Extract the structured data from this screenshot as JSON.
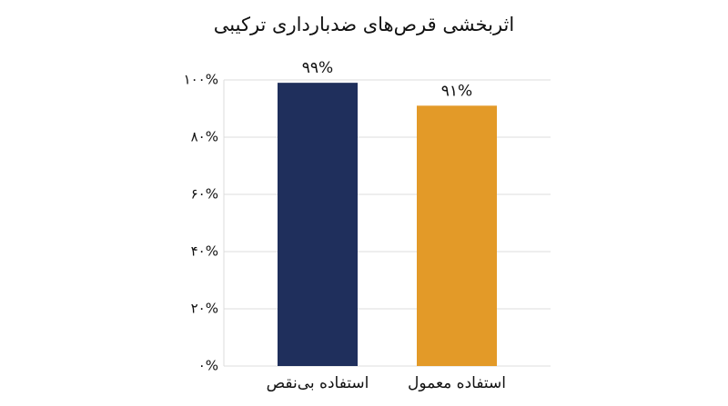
{
  "chart_data": {
    "type": "bar",
    "title": "اثربخشی قرص‌های ضدبارداری ترکیبی",
    "categories": [
      "استفاده بی‌نقص",
      "استفاده معمول"
    ],
    "values": [
      99,
      91
    ],
    "value_labels": [
      "۹۹%",
      "۹۱%"
    ],
    "colors": [
      "#1f2f5c",
      "#e39a28"
    ],
    "ylim": [
      0,
      100
    ],
    "yticks": [
      {
        "value": 0,
        "label": "۰%"
      },
      {
        "value": 20,
        "label": "۲۰%"
      },
      {
        "value": 40,
        "label": "۴۰%"
      },
      {
        "value": 60,
        "label": "۶۰%"
      },
      {
        "value": 80,
        "label": "۸۰%"
      },
      {
        "value": 100,
        "label": "۱۰۰%"
      }
    ],
    "grid": true
  }
}
